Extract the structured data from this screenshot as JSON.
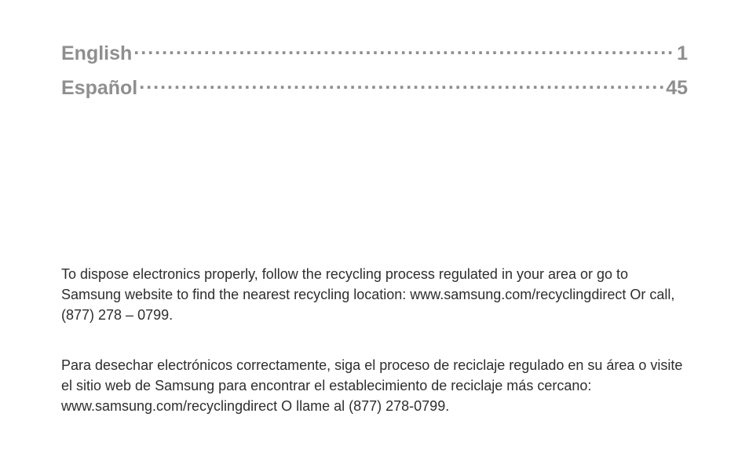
{
  "toc": {
    "items": [
      {
        "label": "English",
        "page": "1"
      },
      {
        "label": "Español",
        "page": "45"
      }
    ],
    "label_color": "#8f8f8f",
    "label_fontsize": 25,
    "label_fontweight": 700
  },
  "body": {
    "english_para": "To dispose electronics properly, follow the recycling process regulated in your area or go to Samsung website to find the nearest recycling location: www.samsung.com/recyclingdirect Or call, (877) 278 – 0799.",
    "spanish_para": "Para desechar electrónicos correctamente, siga el proceso de reciclaje regulado en su área o visite el sitio web de Samsung para encontrar el establecimiento de reciclaje más cercano: www.samsung.com/recyclingdirect O llame al (877) 278-0799.",
    "text_color": "#2e2e2e",
    "fontsize": 18,
    "line_height": 26
  },
  "page_background": "#ffffff"
}
